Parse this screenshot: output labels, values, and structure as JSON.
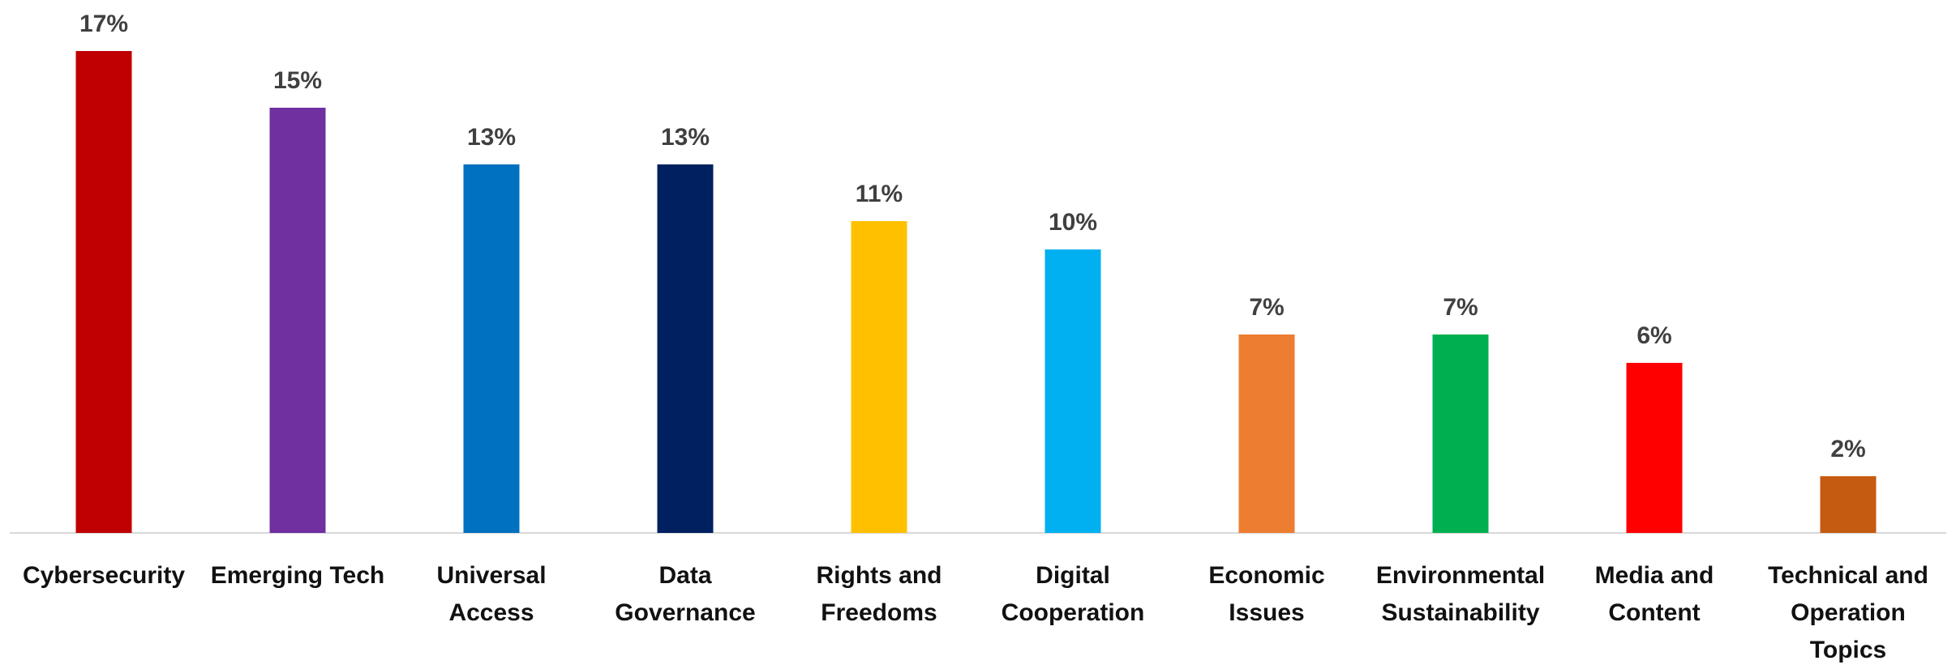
{
  "chart_data": {
    "type": "bar",
    "categories": [
      "Cybersecurity",
      "Emerging Tech",
      "Universal\nAccess",
      "Data\nGovernance",
      "Rights and\nFreedoms",
      "Digital\nCooperation",
      "Economic\nIssues",
      "Environmental\nSustainability",
      "Media and\nContent",
      "Technical and\nOperation\nTopics"
    ],
    "values": [
      17,
      15,
      13,
      13,
      11,
      10,
      7,
      7,
      6,
      2
    ],
    "value_labels": [
      "17%",
      "15%",
      "13%",
      "13%",
      "11%",
      "10%",
      "7%",
      "7%",
      "6%",
      "2%"
    ],
    "colors": [
      "#c00000",
      "#7030a0",
      "#0070c0",
      "#002060",
      "#ffc000",
      "#00b0f0",
      "#ed7d31",
      "#00b050",
      "#ff0000",
      "#c55a11"
    ],
    "grid": false
  }
}
